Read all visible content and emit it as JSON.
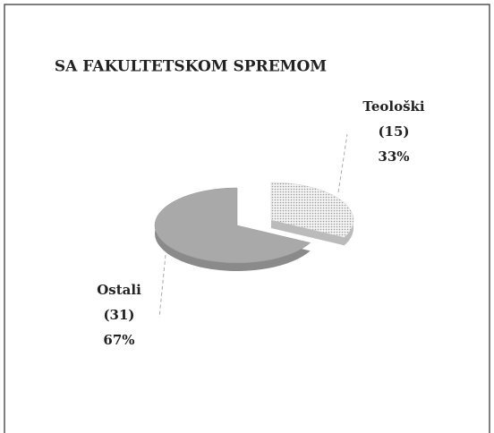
{
  "chart_data": {
    "type": "pie",
    "title": "SA FAKULTETSKOM SPREMOM",
    "categories": [
      "Teološki",
      "Ostali"
    ],
    "values": [
      15,
      31
    ],
    "value_labels": [
      "(15)",
      "(31)"
    ],
    "percent_labels": [
      "33%",
      "67%"
    ],
    "colors": [
      "#e6e6e6",
      "#a9a9a9"
    ]
  }
}
